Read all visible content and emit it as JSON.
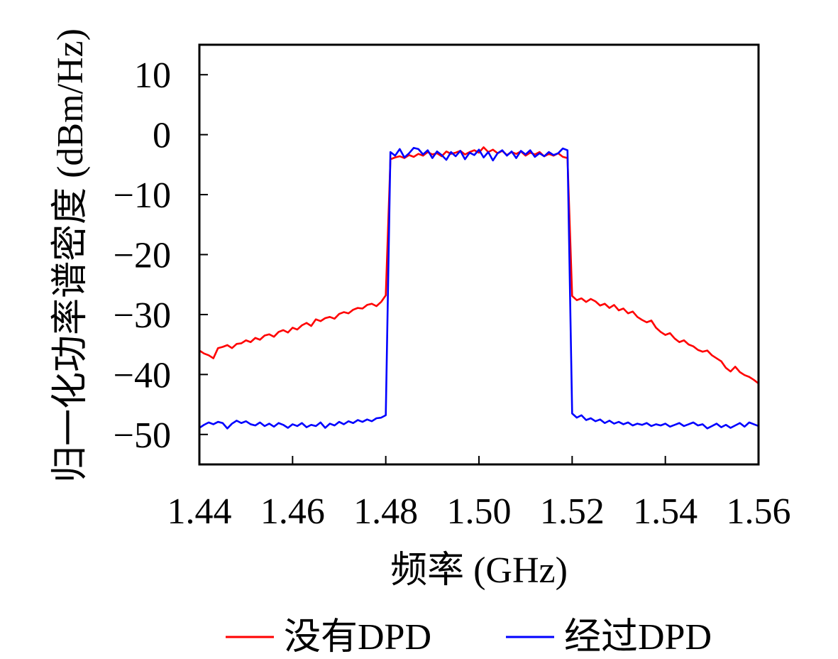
{
  "chart_data": {
    "type": "line",
    "xlabel": "频率 (GHz)",
    "ylabel": "归一化功率谱密度 (dBm/Hz)",
    "xlim": [
      1.44,
      1.56
    ],
    "ylim": [
      -55,
      15
    ],
    "xticks": [
      1.44,
      1.46,
      1.48,
      1.5,
      1.52,
      1.54,
      1.56
    ],
    "xtick_labels": [
      "1.44",
      "1.46",
      "1.48",
      "1.50",
      "1.52",
      "1.54",
      "1.56"
    ],
    "yticks": [
      10,
      0,
      -10,
      -20,
      -30,
      -40,
      -50
    ],
    "ytick_labels": [
      "10",
      "0",
      "−10",
      "−20",
      "−30",
      "−40",
      "−50"
    ],
    "grid": false,
    "legend": {
      "position": "bottom"
    },
    "x": [
      1.44,
      1.441,
      1.442,
      1.443,
      1.444,
      1.445,
      1.446,
      1.447,
      1.448,
      1.449,
      1.45,
      1.451,
      1.452,
      1.453,
      1.454,
      1.455,
      1.456,
      1.457,
      1.458,
      1.459,
      1.46,
      1.461,
      1.462,
      1.463,
      1.464,
      1.465,
      1.466,
      1.467,
      1.468,
      1.469,
      1.47,
      1.471,
      1.472,
      1.473,
      1.474,
      1.475,
      1.476,
      1.477,
      1.478,
      1.479,
      1.48,
      1.481,
      1.482,
      1.483,
      1.484,
      1.485,
      1.486,
      1.487,
      1.488,
      1.489,
      1.49,
      1.491,
      1.492,
      1.493,
      1.494,
      1.495,
      1.496,
      1.497,
      1.498,
      1.499,
      1.5,
      1.501,
      1.502,
      1.503,
      1.504,
      1.505,
      1.506,
      1.507,
      1.508,
      1.509,
      1.51,
      1.511,
      1.512,
      1.513,
      1.514,
      1.515,
      1.516,
      1.517,
      1.518,
      1.519,
      1.52,
      1.521,
      1.522,
      1.523,
      1.524,
      1.525,
      1.526,
      1.527,
      1.528,
      1.529,
      1.53,
      1.531,
      1.532,
      1.533,
      1.534,
      1.535,
      1.536,
      1.537,
      1.538,
      1.539,
      1.54,
      1.541,
      1.542,
      1.543,
      1.544,
      1.545,
      1.546,
      1.547,
      1.548,
      1.549,
      1.55,
      1.551,
      1.552,
      1.553,
      1.554,
      1.555,
      1.556,
      1.557,
      1.558,
      1.559,
      1.56
    ],
    "series": [
      {
        "name": "没有DPD",
        "color": "#ff0000",
        "values": [
          -36.0,
          -36.5,
          -36.8,
          -37.3,
          -35.6,
          -35.4,
          -35.1,
          -35.6,
          -34.9,
          -34.8,
          -34.3,
          -34.6,
          -33.9,
          -34.2,
          -33.5,
          -33.3,
          -33.7,
          -32.9,
          -32.6,
          -33.0,
          -32.2,
          -32.5,
          -31.8,
          -31.4,
          -31.9,
          -30.8,
          -31.1,
          -30.6,
          -30.4,
          -30.7,
          -29.9,
          -29.6,
          -29.8,
          -29.2,
          -28.9,
          -29.0,
          -28.4,
          -28.2,
          -28.6,
          -27.9,
          -26.8,
          -4.1,
          -3.8,
          -3.6,
          -3.9,
          -3.4,
          -3.7,
          -3.2,
          -3.5,
          -2.9,
          -3.3,
          -3.1,
          -3.6,
          -2.8,
          -3.2,
          -3.0,
          -2.7,
          -3.3,
          -2.9,
          -2.6,
          -3.0,
          -2.1,
          -2.9,
          -2.5,
          -3.1,
          -2.7,
          -3.4,
          -2.9,
          -3.2,
          -2.8,
          -3.5,
          -3.0,
          -3.3,
          -2.9,
          -3.6,
          -3.2,
          -3.5,
          -3.1,
          -3.7,
          -3.9,
          -26.9,
          -27.6,
          -27.3,
          -27.9,
          -27.4,
          -27.8,
          -28.5,
          -28.2,
          -28.9,
          -28.4,
          -29.3,
          -29.0,
          -29.8,
          -29.5,
          -30.4,
          -30.9,
          -31.3,
          -31.0,
          -32.2,
          -32.9,
          -33.4,
          -33.1,
          -34.0,
          -34.6,
          -34.3,
          -35.0,
          -35.3,
          -35.9,
          -36.2,
          -36.0,
          -36.8,
          -37.3,
          -37.8,
          -38.9,
          -39.5,
          -38.7,
          -39.6,
          -40.1,
          -40.4,
          -40.9,
          -41.5
        ]
      },
      {
        "name": "经过DPD",
        "color": "#0000ff",
        "values": [
          -48.9,
          -48.4,
          -48.0,
          -48.3,
          -47.9,
          -48.1,
          -49.0,
          -48.2,
          -47.7,
          -48.1,
          -47.8,
          -48.3,
          -48.5,
          -48.0,
          -48.6,
          -48.2,
          -48.7,
          -48.1,
          -48.4,
          -48.9,
          -48.3,
          -48.6,
          -48.1,
          -48.8,
          -48.4,
          -48.6,
          -48.0,
          -48.9,
          -48.2,
          -48.5,
          -47.9,
          -48.3,
          -47.8,
          -48.1,
          -47.6,
          -47.9,
          -47.5,
          -47.8,
          -47.3,
          -47.2,
          -46.8,
          -2.9,
          -3.5,
          -2.4,
          -3.8,
          -3.1,
          -2.2,
          -2.4,
          -3.3,
          -2.6,
          -3.9,
          -2.8,
          -3.4,
          -4.2,
          -2.9,
          -3.6,
          -2.7,
          -4.1,
          -3.0,
          -3.4,
          -2.5,
          -3.8,
          -2.9,
          -4.3,
          -3.1,
          -2.6,
          -3.5,
          -2.8,
          -3.9,
          -2.7,
          -3.3,
          -2.6,
          -3.7,
          -3.1,
          -3.6,
          -2.9,
          -3.4,
          -3.1,
          -2.3,
          -2.6,
          -46.5,
          -47.2,
          -46.8,
          -47.6,
          -47.3,
          -47.8,
          -47.5,
          -48.1,
          -47.7,
          -48.2,
          -47.9,
          -48.3,
          -48.0,
          -48.5,
          -48.2,
          -48.4,
          -48.1,
          -48.6,
          -48.3,
          -48.5,
          -48.2,
          -48.7,
          -48.4,
          -48.1,
          -48.6,
          -48.3,
          -48.0,
          -48.5,
          -48.3,
          -49.0,
          -48.6,
          -48.2,
          -48.8,
          -48.4,
          -48.9,
          -48.5,
          -48.1,
          -48.7,
          -48.0,
          -48.3,
          -48.6
        ]
      }
    ]
  }
}
